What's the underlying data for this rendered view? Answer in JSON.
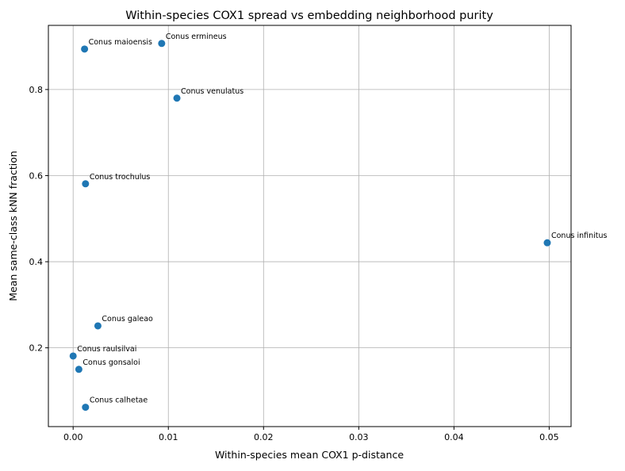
{
  "chart_data": {
    "type": "scatter",
    "title": "Within-species COX1 spread vs embedding neighborhood purity",
    "xlabel": "Within-species mean COX1 p-distance",
    "ylabel": "Mean same-class kNN fraction",
    "xlim": [
      -0.0026,
      0.0523
    ],
    "ylim": [
      0.017,
      0.949
    ],
    "xticks": [
      0.0,
      0.01,
      0.02,
      0.03,
      0.04,
      0.05
    ],
    "xtick_labels": [
      "0.00",
      "0.01",
      "0.02",
      "0.03",
      "0.04",
      "0.05"
    ],
    "yticks": [
      0.2,
      0.4,
      0.6,
      0.8
    ],
    "ytick_labels": [
      "0.2",
      "0.4",
      "0.6",
      "0.8"
    ],
    "grid": true,
    "color": "#1f77b4",
    "points": [
      {
        "label": "Conus maioensis",
        "x": 0.0012,
        "y": 0.894
      },
      {
        "label": "Conus ermineus",
        "x": 0.0093,
        "y": 0.907
      },
      {
        "label": "Conus venulatus",
        "x": 0.0109,
        "y": 0.78
      },
      {
        "label": "Conus trochulus",
        "x": 0.0013,
        "y": 0.581
      },
      {
        "label": "Conus infinitus",
        "x": 0.0498,
        "y": 0.444
      },
      {
        "label": "Conus galeao",
        "x": 0.0026,
        "y": 0.251
      },
      {
        "label": "Conus raulsilvai",
        "x": 0.0,
        "y": 0.181
      },
      {
        "label": "Conus gonsaloi",
        "x": 0.0006,
        "y": 0.15
      },
      {
        "label": "Conus calhetae",
        "x": 0.0013,
        "y": 0.062
      }
    ]
  }
}
